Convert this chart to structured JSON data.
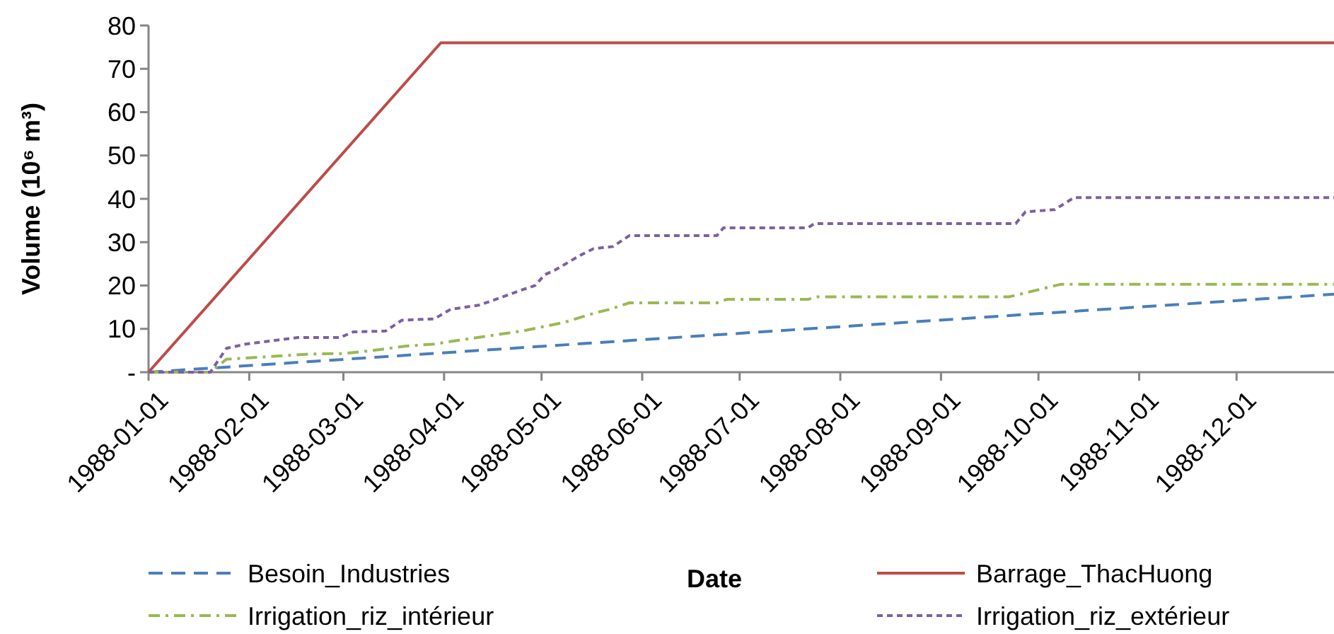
{
  "chart_data": {
    "type": "line",
    "xlabel": "Date",
    "ylabel": "Volume (10⁶ m³)",
    "xlim": [
      "1988-01-01",
      "1988-12-31"
    ],
    "xticks": [
      {
        "value": "1988-01-01",
        "label": "1988-01-01"
      },
      {
        "value": "1988-02-01",
        "label": "1988-02-01"
      },
      {
        "value": "1988-03-01",
        "label": "1988-03-01"
      },
      {
        "value": "1988-04-01",
        "label": "1988-04-01"
      },
      {
        "value": "1988-05-01",
        "label": "1988-05-01"
      },
      {
        "value": "1988-06-01",
        "label": "1988-06-01"
      },
      {
        "value": "1988-07-01",
        "label": "1988-07-01"
      },
      {
        "value": "1988-08-01",
        "label": "1988-08-01"
      },
      {
        "value": "1988-09-01",
        "label": "1988-09-01"
      },
      {
        "value": "1988-10-01",
        "label": "1988-10-01"
      },
      {
        "value": "1988-11-01",
        "label": "1988-11-01"
      },
      {
        "value": "1988-12-01",
        "label": "1988-12-01"
      }
    ],
    "ylim": [
      0,
      80
    ],
    "yticks": [
      {
        "value": 0,
        "label": "-"
      },
      10,
      20,
      30,
      40,
      50,
      60,
      70,
      80
    ],
    "grid": false,
    "legend": "bottom",
    "marker": "none",
    "series": [
      {
        "name": "Besoin_Industries",
        "color": "#4a7ebb",
        "line_style": "dashed",
        "x": [
          "1988-01-01",
          "1988-12-31"
        ],
        "values": [
          0,
          18
        ]
      },
      {
        "name": "Barrage_ThacHuong",
        "color": "#be4b48",
        "line_style": "solid",
        "x": [
          "1988-01-01",
          "1988-03-31",
          "1988-12-31"
        ],
        "values": [
          0,
          76,
          76
        ]
      },
      {
        "name": "Irrigation_riz_intérieur",
        "color": "#98b954",
        "line_style": "dashdot",
        "x": [
          "1988-01-01",
          "1988-01-20",
          "1988-01-25",
          "1988-02-05",
          "1988-02-20",
          "1988-03-01",
          "1988-03-10",
          "1988-03-20",
          "1988-03-29",
          "1988-04-05",
          "1988-04-25",
          "1988-05-08",
          "1988-05-18",
          "1988-05-22",
          "1988-05-28",
          "1988-06-24",
          "1988-06-27",
          "1988-07-22",
          "1988-07-25",
          "1988-09-22",
          "1988-09-28",
          "1988-10-08",
          "1988-12-31"
        ],
        "values": [
          0,
          0,
          3,
          3.5,
          4.2,
          4.3,
          5,
          6,
          6.5,
          7.3,
          9.5,
          11.5,
          13.8,
          14.5,
          16,
          16,
          16.8,
          16.8,
          17.4,
          17.4,
          18.5,
          20.3,
          20.3
        ]
      },
      {
        "name": "Irrigation_riz_extérieur",
        "color": "#7d60a0",
        "line_style": "dotted",
        "x": [
          "1988-01-01",
          "1988-01-20",
          "1988-01-25",
          "1988-01-31",
          "1988-02-16",
          "1988-02-29",
          "1988-03-04",
          "1988-03-14",
          "1988-03-19",
          "1988-03-29",
          "1988-04-03",
          "1988-04-12",
          "1988-04-25",
          "1988-04-29",
          "1988-05-02",
          "1988-05-05",
          "1988-05-13",
          "1988-05-17",
          "1988-05-23",
          "1988-05-28",
          "1988-06-24",
          "1988-06-26",
          "1988-07-22",
          "1988-07-24",
          "1988-09-24",
          "1988-09-27",
          "1988-10-06",
          "1988-10-12",
          "1988-12-31"
        ],
        "values": [
          0,
          0,
          5.5,
          6.5,
          8,
          8,
          9.3,
          9.5,
          12,
          12.3,
          14.5,
          15.5,
          19,
          20,
          22.5,
          23.5,
          27,
          28.5,
          29,
          31.5,
          31.5,
          33.3,
          33.3,
          34.3,
          34.3,
          37,
          37.5,
          40.3,
          40.3
        ]
      }
    ]
  }
}
